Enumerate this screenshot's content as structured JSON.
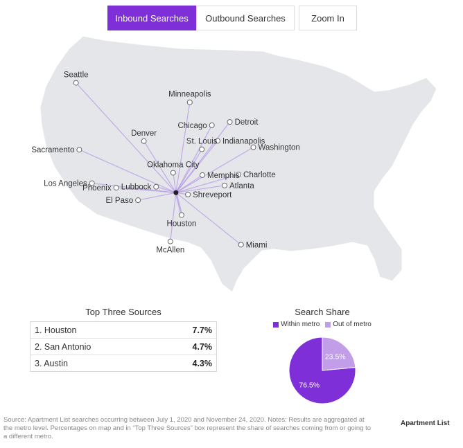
{
  "tabs": [
    {
      "label": "Inbound Searches",
      "active": true
    },
    {
      "label": "Outbound Searches",
      "active": false
    },
    {
      "label": "Zoom In",
      "active": false
    }
  ],
  "colors": {
    "accent": "#7f2fd8",
    "within_metro": "#7f2fd8",
    "out_of_metro": "#c29ee8",
    "map_land": "#e4e6e9",
    "flow_line": "#b597e6"
  },
  "map": {
    "destination": "Dallas",
    "cities": [
      {
        "name": "Seattle",
        "lon": -122.33,
        "lat": 47.61,
        "label_side": "above"
      },
      {
        "name": "Minneapolis",
        "lon": -93.27,
        "lat": 44.98,
        "label_side": "above"
      },
      {
        "name": "Sacramento",
        "lon": -121.49,
        "lat": 38.58,
        "label_side": "left"
      },
      {
        "name": "Chicago",
        "lon": -87.63,
        "lat": 41.88,
        "label_side": "left"
      },
      {
        "name": "Detroit",
        "lon": -83.05,
        "lat": 42.33,
        "label_side": "right"
      },
      {
        "name": "Denver",
        "lon": -104.99,
        "lat": 39.74,
        "label_side": "above"
      },
      {
        "name": "Indianapolis",
        "lon": -86.16,
        "lat": 39.77,
        "label_side": "right"
      },
      {
        "name": "Washington",
        "lon": -77.04,
        "lat": 38.91,
        "label_side": "right"
      },
      {
        "name": "St. Louis",
        "lon": -90.2,
        "lat": 38.63,
        "label_side": "above"
      },
      {
        "name": "Los Angeles",
        "lon": -118.24,
        "lat": 34.05,
        "label_side": "left"
      },
      {
        "name": "Oklahoma City",
        "lon": -97.52,
        "lat": 35.47,
        "label_side": "above"
      },
      {
        "name": "Charlotte",
        "lon": -80.84,
        "lat": 35.23,
        "label_side": "right"
      },
      {
        "name": "Memphis",
        "lon": -90.05,
        "lat": 35.15,
        "label_side": "right"
      },
      {
        "name": "Phoenix",
        "lon": -112.07,
        "lat": 33.45,
        "label_side": "left"
      },
      {
        "name": "Atlanta",
        "lon": -84.39,
        "lat": 33.75,
        "label_side": "right"
      },
      {
        "name": "Lubbock",
        "lon": -101.86,
        "lat": 33.58,
        "label_side": "left"
      },
      {
        "name": "El Paso",
        "lon": -106.49,
        "lat": 31.76,
        "label_side": "left"
      },
      {
        "name": "Shreveport",
        "lon": -93.75,
        "lat": 32.53,
        "label_side": "right"
      },
      {
        "name": "Houston",
        "lon": -95.37,
        "lat": 29.76,
        "label_side": "below"
      },
      {
        "name": "Miami",
        "lon": -80.19,
        "lat": 25.76,
        "label_side": "right"
      },
      {
        "name": "McAllen",
        "lon": -98.23,
        "lat": 26.2,
        "label_side": "below"
      }
    ]
  },
  "top_three": {
    "title": "Top Three Sources",
    "rows": [
      {
        "rank": "1. Houston",
        "pct": "7.7%"
      },
      {
        "rank": "2. San Antonio",
        "pct": "4.7%"
      },
      {
        "rank": "3. Austin",
        "pct": "4.3%"
      }
    ]
  },
  "chart_data": {
    "type": "pie",
    "title": "Search Share",
    "legend": [
      "Within metro",
      "Out of metro"
    ],
    "slices": [
      {
        "name": "Within metro",
        "value": 76.5,
        "label": "76.5%"
      },
      {
        "name": "Out of metro",
        "value": 23.5,
        "label": "23.5%"
      }
    ],
    "legend_placement": "top"
  },
  "source_note": "Source: Apartment List searches occurring between July 1, 2020 and November 24, 2020. Notes: Results are aggregated at the metro level. Percentages on map and in “Top Three Sources” box represent the share of searches coming from or going to a different metro.",
  "logo_text": "Apartment List"
}
